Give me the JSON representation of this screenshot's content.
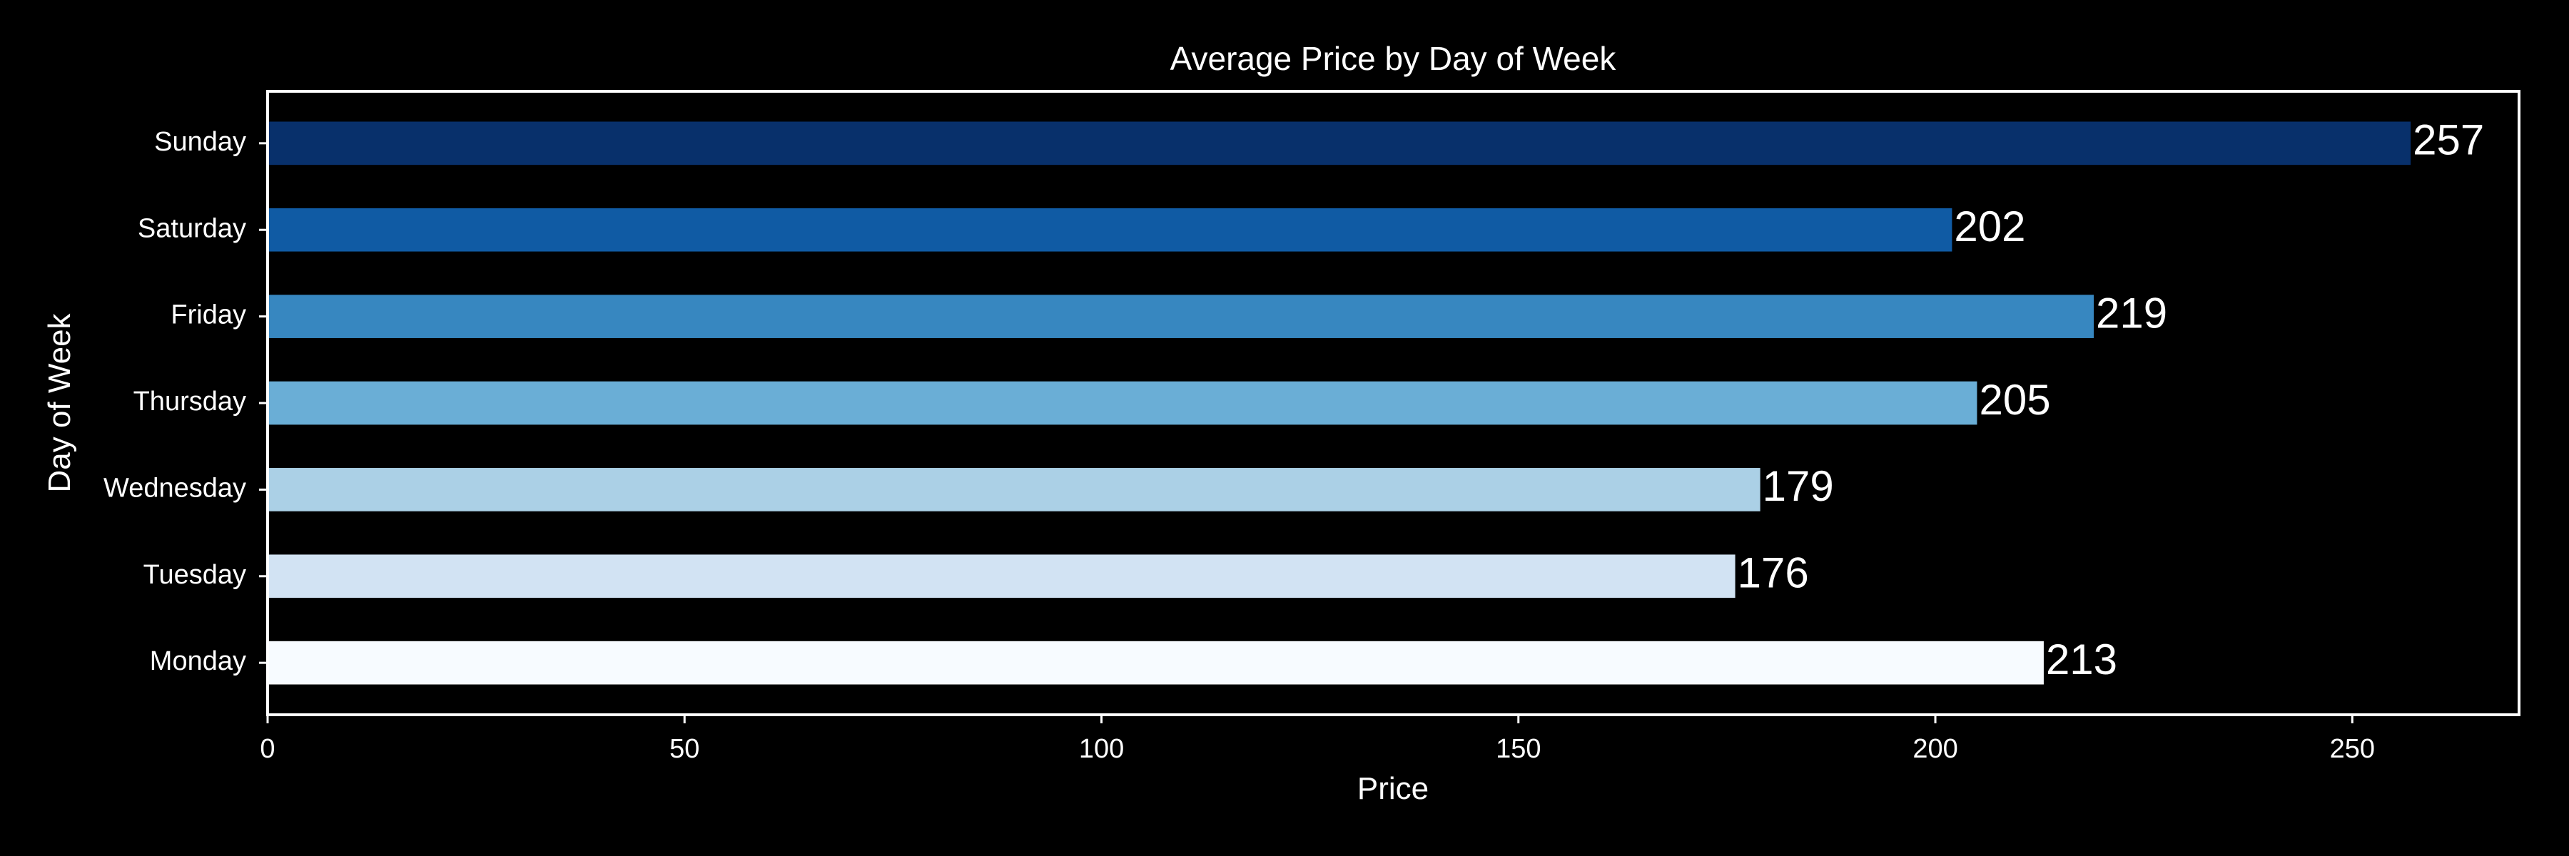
{
  "chart_data": {
    "type": "bar",
    "orientation": "horizontal",
    "title": "Average Price by Day of Week",
    "xlabel": "Price",
    "ylabel": "Day of Week",
    "categories": [
      "Monday",
      "Tuesday",
      "Wednesday",
      "Thursday",
      "Friday",
      "Saturday",
      "Sunday"
    ],
    "values": [
      213,
      176,
      179,
      205,
      219,
      202,
      257
    ],
    "data_labels": [
      "213",
      "176",
      "179",
      "205",
      "219",
      "202",
      "257"
    ],
    "xlim": [
      0,
      270
    ],
    "xticks": [
      0,
      50,
      100,
      150,
      200,
      250
    ],
    "xtick_labels": [
      "0",
      "50",
      "100",
      "150",
      "200",
      "250"
    ],
    "grid": false,
    "background": "#000000",
    "text_color": "#ffffff",
    "bar_colors": [
      "#f7fbff",
      "#d2e3f3",
      "#abd0e6",
      "#6aaed6",
      "#3787c0",
      "#105ba4",
      "#08306b"
    ]
  }
}
